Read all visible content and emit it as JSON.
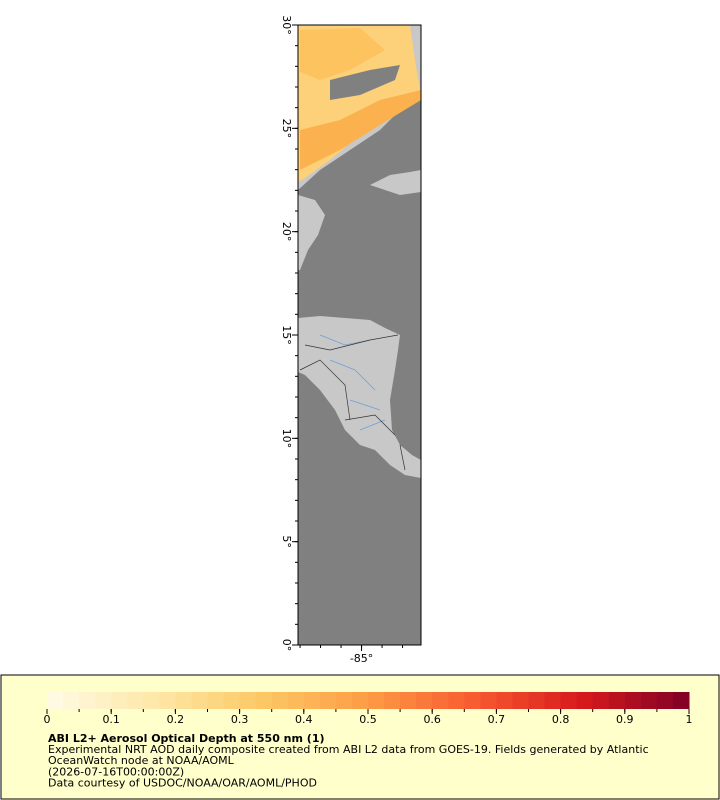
{
  "map": {
    "xlim": [
      -88.1,
      -82.1
    ],
    "ylim": [
      0,
      30
    ],
    "yticks": [
      {
        "value": 0,
        "label": "0°"
      },
      {
        "value": 5,
        "label": "5°"
      },
      {
        "value": 10,
        "label": "10°"
      },
      {
        "value": 15,
        "label": "15°"
      },
      {
        "value": 20,
        "label": "20°"
      },
      {
        "value": 25,
        "label": "25°"
      },
      {
        "value": 30,
        "label": "30°"
      }
    ],
    "xticks": [
      {
        "value": -85,
        "label": "-85°"
      }
    ],
    "minor_step": 1
  },
  "legend": {
    "range": [
      0,
      1
    ],
    "ticks": [
      0,
      0.1,
      0.2,
      0.3,
      0.4,
      0.5,
      0.6,
      0.7,
      0.8,
      0.9,
      1
    ],
    "minor_step": 0.05,
    "colors": [
      "#fffbe6",
      "#fee8a8",
      "#fdc866",
      "#fd9c45",
      "#f85a30",
      "#d7191c",
      "#7f0026"
    ]
  },
  "caption": {
    "title": "ABI L2+ Aerosol Optical Depth at 550 nm (1)",
    "lines": [
      "Experimental NRT AOD daily composite created from ABI L2 data from GOES-19. Fields generated by Atlantic",
      "OceanWatch node at NOAA/AOML",
      "(2026-07-16T00:00:00Z)",
      "Data courtesy of USDOC/NOAA/OAR/AOML/PHOD"
    ]
  }
}
